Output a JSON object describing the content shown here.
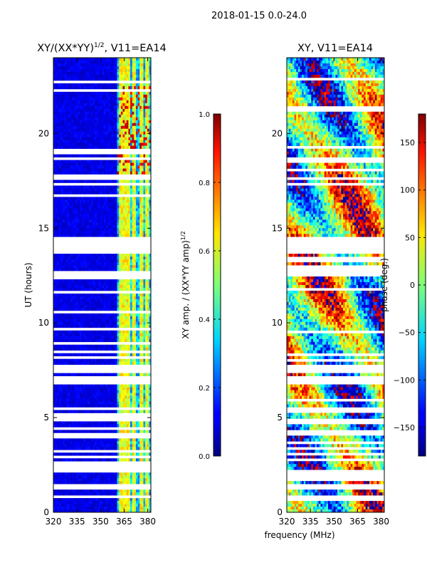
{
  "figure": {
    "suptitle": "2018-01-15 0.0-24.0"
  },
  "chart_data": [
    {
      "type": "heatmap",
      "title_main": "XY/(XX*YY)",
      "title_sup": "1/2",
      "title_tail": ", V11=EA14",
      "xlabel": "",
      "ylabel": "UT (hours)",
      "xlim": [
        320,
        382
      ],
      "ylim": [
        0,
        24
      ],
      "xticks": [
        320,
        335,
        350,
        365,
        380
      ],
      "yticks": [
        0,
        5,
        10,
        15,
        20
      ],
      "colorbar": {
        "label_main": "XY amp. / (XX*YY amp)",
        "label_sup": "1/2",
        "range": [
          0.0,
          1.0
        ],
        "ticks": [
          "0.0",
          "0.2",
          "0.4",
          "0.6",
          "0.8",
          "1.0"
        ],
        "tick_values": [
          0.0,
          0.2,
          0.4,
          0.6,
          0.8,
          1.0
        ]
      },
      "flagged_ut_ranges": [
        [
          0.7,
          0.95
        ],
        [
          1.15,
          1.3
        ],
        [
          1.4,
          1.5
        ],
        [
          2.1,
          2.65
        ],
        [
          2.85,
          2.95
        ],
        [
          3.2,
          3.3
        ],
        [
          3.55,
          3.65
        ],
        [
          3.95,
          4.2
        ],
        [
          4.4,
          4.5
        ],
        [
          4.8,
          5.2
        ],
        [
          5.45,
          5.6
        ],
        [
          6.7,
          7.2
        ],
        [
          7.35,
          7.75
        ],
        [
          8.1,
          8.2
        ],
        [
          8.4,
          8.5
        ],
        [
          8.9,
          9.0
        ],
        [
          9.6,
          9.7
        ],
        [
          10.5,
          10.6
        ],
        [
          11.6,
          11.7
        ],
        [
          12.3,
          12.75
        ],
        [
          13.05,
          13.1
        ],
        [
          13.3,
          13.4
        ],
        [
          13.65,
          14.6
        ],
        [
          16.0,
          16.1
        ],
        [
          16.7,
          16.8
        ],
        [
          17.3,
          17.45
        ],
        [
          17.6,
          17.8
        ],
        [
          18.6,
          18.8
        ],
        [
          18.95,
          19.2
        ],
        [
          20.65,
          20.75
        ],
        [
          21.1,
          21.2
        ],
        [
          22.2,
          22.3
        ],
        [
          22.45,
          22.5
        ],
        [
          22.7,
          22.8
        ]
      ],
      "high_amp_channels_mhz": [
        363,
        365.5,
        368,
        371,
        376,
        380
      ]
    },
    {
      "type": "heatmap",
      "title": "XY, V11=EA14",
      "xlabel": "frequency (MHz)",
      "ylabel": "",
      "xlim": [
        320,
        382
      ],
      "ylim": [
        0,
        24
      ],
      "xticks": [
        320,
        335,
        350,
        365,
        380
      ],
      "yticks": [
        0,
        5,
        10,
        15,
        20
      ],
      "colorbar": {
        "label": "phase (deg.)",
        "range": [
          -180,
          180
        ],
        "ticks": [
          "150",
          "100",
          "50",
          "0",
          "−50",
          "−100",
          "−150"
        ],
        "tick_values": [
          150,
          100,
          50,
          0,
          -50,
          -100,
          -150
        ]
      },
      "flagged_ut_ranges": [
        [
          0.65,
          0.9
        ],
        [
          1.2,
          1.3
        ],
        [
          1.4,
          1.5
        ],
        [
          1.6,
          2.2
        ],
        [
          2.7,
          2.8
        ],
        [
          3.0,
          3.1
        ],
        [
          3.3,
          3.4
        ],
        [
          3.6,
          3.7
        ],
        [
          4.0,
          4.3
        ],
        [
          4.7,
          5.0
        ],
        [
          5.3,
          5.5
        ],
        [
          5.9,
          6.0
        ],
        [
          6.75,
          7.2
        ],
        [
          7.35,
          7.8
        ],
        [
          8.0,
          8.1
        ],
        [
          8.3,
          8.4
        ],
        [
          9.5,
          9.6
        ],
        [
          10.6,
          10.7
        ],
        [
          11.7,
          11.8
        ],
        [
          12.4,
          13.0
        ],
        [
          13.2,
          13.3
        ],
        [
          13.4,
          13.5
        ],
        [
          13.7,
          14.5
        ],
        [
          17.2,
          17.4
        ],
        [
          17.6,
          17.7
        ],
        [
          18.0,
          18.1
        ],
        [
          18.5,
          18.8
        ],
        [
          19.2,
          19.3
        ],
        [
          21.2,
          21.4
        ],
        [
          22.0,
          22.1
        ],
        [
          22.3,
          22.4
        ],
        [
          22.8,
          22.9
        ],
        [
          23.2,
          23.3
        ]
      ]
    }
  ]
}
